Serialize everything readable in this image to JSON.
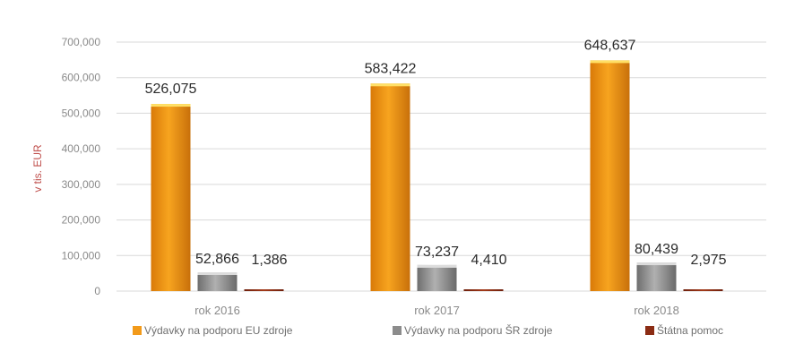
{
  "chart_data": {
    "type": "bar",
    "categories": [
      "rok 2016",
      "rok 2017",
      "rok 2018"
    ],
    "series": [
      {
        "name": "Výdavky na podporu EU zdroje",
        "values": [
          526075,
          583422,
          648637
        ],
        "labels": [
          "526,075",
          "583,422",
          "648,637"
        ],
        "color": "#f29a1a"
      },
      {
        "name": "Výdavky na podporu ŠR zdroje",
        "values": [
          52866,
          73237,
          80439
        ],
        "labels": [
          "52,866",
          "73,237",
          "80,439"
        ],
        "color": "#8c8c8c"
      },
      {
        "name": "Štátna pomoc",
        "values": [
          1386,
          4410,
          2975
        ],
        "labels": [
          "1,386",
          "4,410",
          "2,975"
        ],
        "color": "#8b2c14"
      }
    ],
    "ylabel": "v tis. EUR",
    "ylim": [
      0,
      700000
    ],
    "yticks": [
      0,
      100000,
      200000,
      300000,
      400000,
      500000,
      600000,
      700000
    ],
    "ytick_labels": [
      "0",
      "100,000",
      "200,000",
      "300,000",
      "400,000",
      "500,000",
      "600,000",
      "700,000"
    ],
    "grid": true,
    "legend_position": "bottom"
  }
}
